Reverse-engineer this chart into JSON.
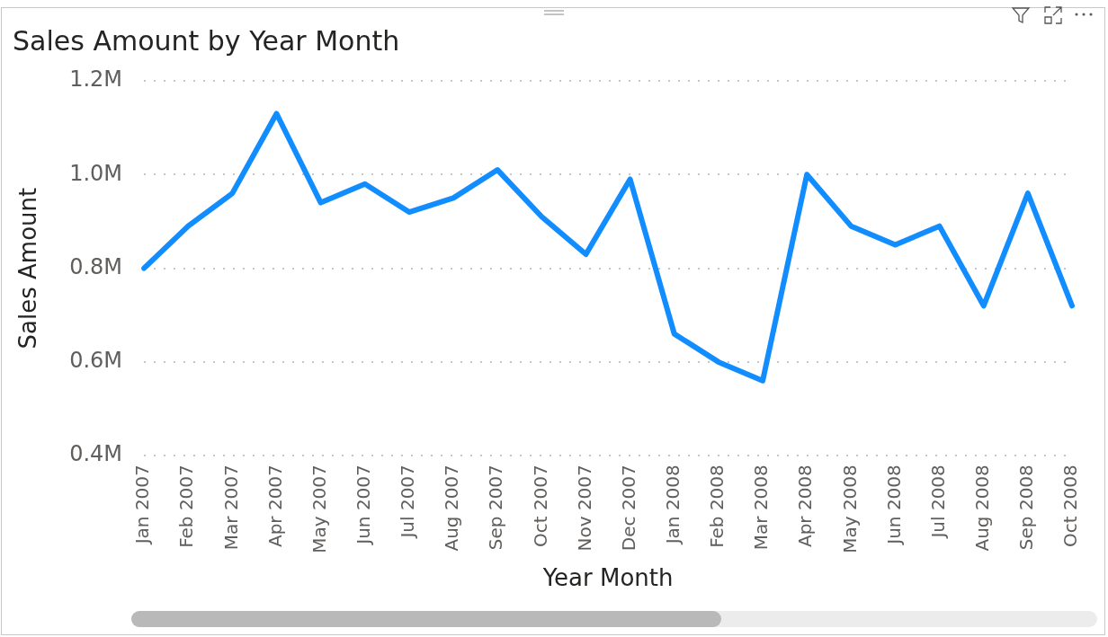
{
  "chart_data": {
    "type": "line",
    "title": "Sales Amount by Year Month",
    "xlabel": "Year Month",
    "ylabel": "Sales Amount",
    "categories": [
      "Jan 2007",
      "Feb 2007",
      "Mar 2007",
      "Apr 2007",
      "May 2007",
      "Jun 2007",
      "Jul 2007",
      "Aug 2007",
      "Sep 2007",
      "Oct 2007",
      "Nov 2007",
      "Dec 2007",
      "Jan 2008",
      "Feb 2008",
      "Mar 2008",
      "Apr 2008",
      "May 2008",
      "Jun 2008",
      "Jul 2008",
      "Aug 2008",
      "Sep 2008",
      "Oct 2008"
    ],
    "series": [
      {
        "color": "#118dff",
        "values": [
          800000,
          890000,
          960000,
          1130000,
          940000,
          980000,
          920000,
          950000,
          1010000,
          910000,
          830000,
          990000,
          660000,
          600000,
          560000,
          1000000,
          890000,
          850000,
          890000,
          720000,
          960000,
          720000
        ]
      }
    ],
    "ylim": [
      400000,
      1200000
    ],
    "yticks": [
      {
        "value": 400000,
        "label": "0.4M"
      },
      {
        "value": 600000,
        "label": "0.6M"
      },
      {
        "value": 800000,
        "label": "0.8M"
      },
      {
        "value": 1000000,
        "label": "1.0M"
      },
      {
        "value": 1200000,
        "label": "1.2M"
      }
    ],
    "grid": "y",
    "legend": false,
    "marker": "none",
    "line_style": "solid"
  }
}
